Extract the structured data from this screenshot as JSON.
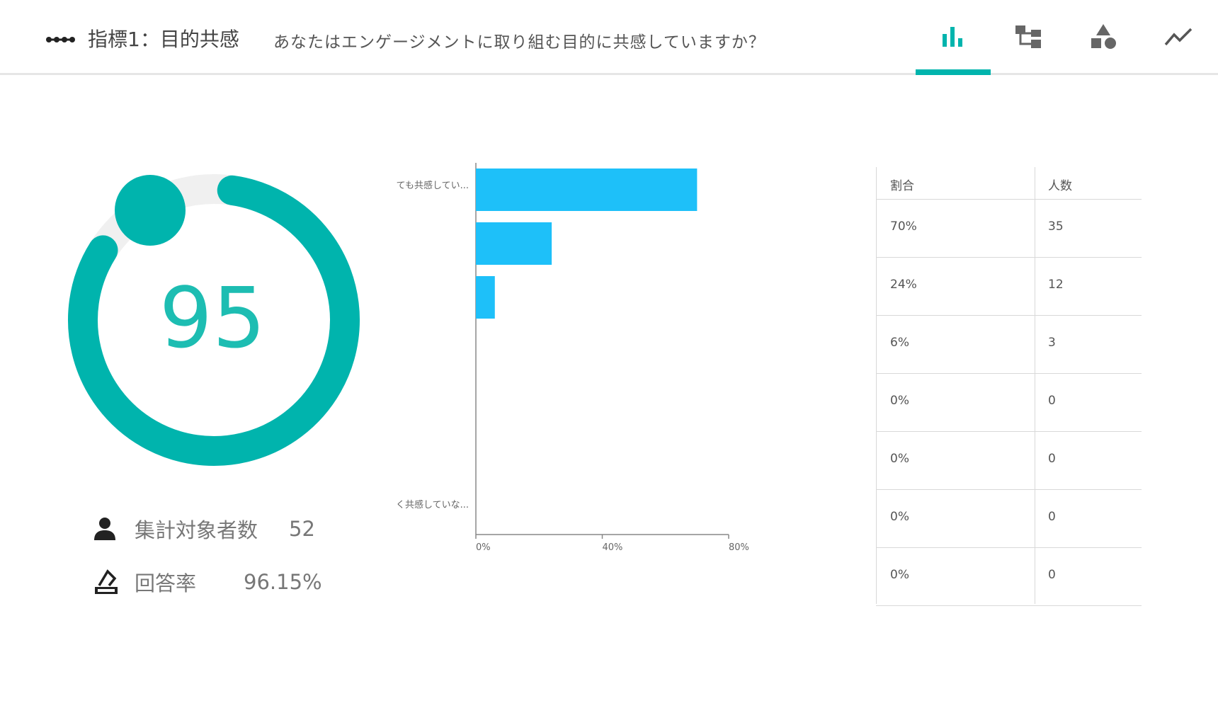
{
  "header": {
    "title": "指標1：目的共感",
    "question": "あなたはエンゲージメントに取り組む目的に共感していますか？",
    "tabs": [
      {
        "icon": "bar-chart-icon",
        "active": true
      },
      {
        "icon": "tree-structure-icon",
        "active": false
      },
      {
        "icon": "shapes-icon",
        "active": false
      },
      {
        "icon": "trend-line-icon",
        "active": false
      }
    ]
  },
  "score": {
    "value": "95",
    "progress_fraction": 0.95
  },
  "stats": {
    "target_label": "集計対象者数",
    "target_value": "52",
    "response_label": "回答率",
    "response_value": "96.15%"
  },
  "chart_data": {
    "type": "bar",
    "orientation": "horizontal",
    "categories": [
      "とても共感してい...",
      "",
      "",
      "",
      "",
      "",
      "全く共感していな..."
    ],
    "values": [
      70,
      24,
      6,
      0,
      0,
      0,
      0
    ],
    "xlim": [
      0,
      80
    ],
    "xticks": [
      "0%",
      "40%",
      "80%"
    ],
    "color": "#1ec0f9"
  },
  "table": {
    "headers": [
      "割合",
      "人数"
    ],
    "rows": [
      [
        "70%",
        "35"
      ],
      [
        "24%",
        "12"
      ],
      [
        "6%",
        "3"
      ],
      [
        "0%",
        "0"
      ],
      [
        "0%",
        "0"
      ],
      [
        "0%",
        "0"
      ],
      [
        "0%",
        "0"
      ]
    ]
  },
  "colors": {
    "accent": "#00b4ad",
    "bar": "#1ec0f9"
  }
}
